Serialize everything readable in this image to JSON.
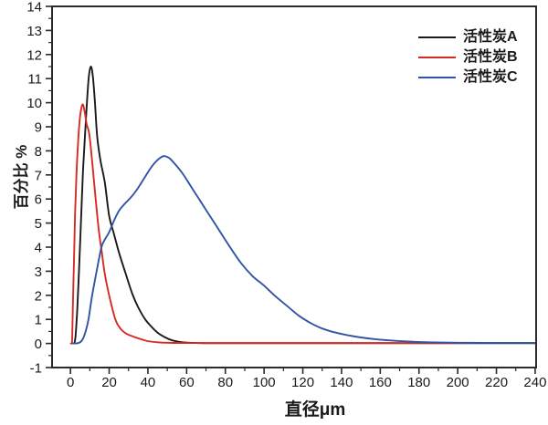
{
  "chart_data": {
    "type": "line",
    "title": "",
    "xlabel": "直径μm",
    "ylabel": "百分比 %",
    "xlim": [
      -9.5,
      240.5
    ],
    "ylim": [
      -1,
      14
    ],
    "grid": false,
    "legend_position": "top-right",
    "axis_color": "#2a2a2a",
    "text_color": "#1a1a1a",
    "background": "#ffffff",
    "x_tick_labels": [
      "0",
      "20",
      "40",
      "60",
      "80",
      "100",
      "120",
      "140",
      "160",
      "180",
      "200",
      "220",
      "240"
    ],
    "x_ticks": [
      0,
      20,
      40,
      60,
      80,
      100,
      120,
      140,
      160,
      180,
      200,
      220,
      240
    ],
    "x_minor_ticks": [
      10,
      30,
      50,
      70,
      90,
      110,
      130,
      150,
      170,
      190,
      210,
      230
    ],
    "y_tick_labels": [
      "-1",
      "0",
      "1",
      "2",
      "3",
      "4",
      "5",
      "6",
      "7",
      "8",
      "9",
      "10",
      "11",
      "12",
      "13",
      "14"
    ],
    "y_ticks": [
      -1,
      0,
      1,
      2,
      3,
      4,
      5,
      6,
      7,
      8,
      9,
      10,
      11,
      12,
      13,
      14
    ],
    "y_minor_ticks": [
      -0.5,
      0.5,
      1.5,
      2.5,
      3.5,
      4.5,
      5.5,
      6.5,
      7.5,
      8.5,
      9.5,
      10.5,
      11.5,
      12.5,
      13.5
    ],
    "series": [
      {
        "name": "活性炭A",
        "color": "#1a1a1a",
        "points": [
          [
            2,
            0
          ],
          [
            2.6,
            0.3
          ],
          [
            3.5,
            1.4
          ],
          [
            4.5,
            3.2
          ],
          [
            5.5,
            5.2
          ],
          [
            6.5,
            7.2
          ],
          [
            7.6,
            8.8
          ],
          [
            8.5,
            10.0
          ],
          [
            9.5,
            11.1
          ],
          [
            10.5,
            11.5
          ],
          [
            11.5,
            11.15
          ],
          [
            12.5,
            10.2
          ],
          [
            13.8,
            8.6
          ],
          [
            15.5,
            7.6
          ],
          [
            17.7,
            6.7
          ],
          [
            20,
            5.3
          ],
          [
            22.3,
            4.6
          ],
          [
            25,
            3.8
          ],
          [
            28.5,
            2.9
          ],
          [
            32,
            2.05
          ],
          [
            35,
            1.5
          ],
          [
            38.6,
            1.0
          ],
          [
            42,
            0.68
          ],
          [
            45,
            0.45
          ],
          [
            49,
            0.25
          ],
          [
            53,
            0.12
          ],
          [
            58,
            0.05
          ],
          [
            65,
            0.02
          ],
          [
            80,
            0.01
          ],
          [
            120,
            0.01
          ],
          [
            180,
            0.01
          ],
          [
            240,
            0.01
          ]
        ]
      },
      {
        "name": "活性炭B",
        "color": "#d42b23",
        "points": [
          [
            0.2,
            0
          ],
          [
            0.8,
            0
          ],
          [
            1.2,
            1.4
          ],
          [
            1.8,
            3.4
          ],
          [
            2.4,
            5.4
          ],
          [
            3.1,
            7.0
          ],
          [
            3.9,
            8.3
          ],
          [
            4.8,
            9.3
          ],
          [
            5.7,
            9.8
          ],
          [
            6.5,
            9.92
          ],
          [
            7.4,
            9.6
          ],
          [
            8.4,
            9.1
          ],
          [
            9.9,
            8.6
          ],
          [
            12.2,
            6.7
          ],
          [
            14.5,
            4.8
          ],
          [
            16,
            3.9
          ],
          [
            17.7,
            2.9
          ],
          [
            20,
            2.0
          ],
          [
            23.2,
            1.0
          ],
          [
            26,
            0.6
          ],
          [
            29,
            0.4
          ],
          [
            32,
            0.3
          ],
          [
            35.5,
            0.2
          ],
          [
            40,
            0.1
          ],
          [
            45,
            0.05
          ],
          [
            50,
            0.03
          ],
          [
            60,
            0.02
          ],
          [
            100,
            0.02
          ],
          [
            160,
            0.02
          ],
          [
            240,
            0.02
          ]
        ]
      },
      {
        "name": "活性炭C",
        "color": "#2f55a4",
        "points": [
          [
            1,
            0
          ],
          [
            3,
            0
          ],
          [
            5,
            0.05
          ],
          [
            6.5,
            0.2
          ],
          [
            8,
            0.55
          ],
          [
            9.3,
            1.0
          ],
          [
            11.2,
            2.0
          ],
          [
            13.5,
            3.0
          ],
          [
            16,
            4.0
          ],
          [
            18,
            4.35
          ],
          [
            20,
            4.62
          ],
          [
            22.5,
            5.1
          ],
          [
            25,
            5.5
          ],
          [
            28,
            5.8
          ],
          [
            31,
            6.05
          ],
          [
            34,
            6.35
          ],
          [
            38,
            6.85
          ],
          [
            42,
            7.35
          ],
          [
            45,
            7.62
          ],
          [
            48,
            7.78
          ],
          [
            51,
            7.7
          ],
          [
            54,
            7.45
          ],
          [
            58,
            7.05
          ],
          [
            62,
            6.55
          ],
          [
            66,
            6.05
          ],
          [
            70,
            5.55
          ],
          [
            76,
            4.8
          ],
          [
            82,
            4.05
          ],
          [
            88,
            3.35
          ],
          [
            94,
            2.8
          ],
          [
            100,
            2.4
          ],
          [
            106,
            1.95
          ],
          [
            112,
            1.55
          ],
          [
            118,
            1.15
          ],
          [
            124,
            0.85
          ],
          [
            130,
            0.62
          ],
          [
            136,
            0.47
          ],
          [
            142,
            0.36
          ],
          [
            150,
            0.25
          ],
          [
            158,
            0.17
          ],
          [
            166,
            0.12
          ],
          [
            175,
            0.08
          ],
          [
            185,
            0.05
          ],
          [
            200,
            0.03
          ],
          [
            220,
            0.02
          ],
          [
            240,
            0.02
          ]
        ]
      }
    ]
  }
}
